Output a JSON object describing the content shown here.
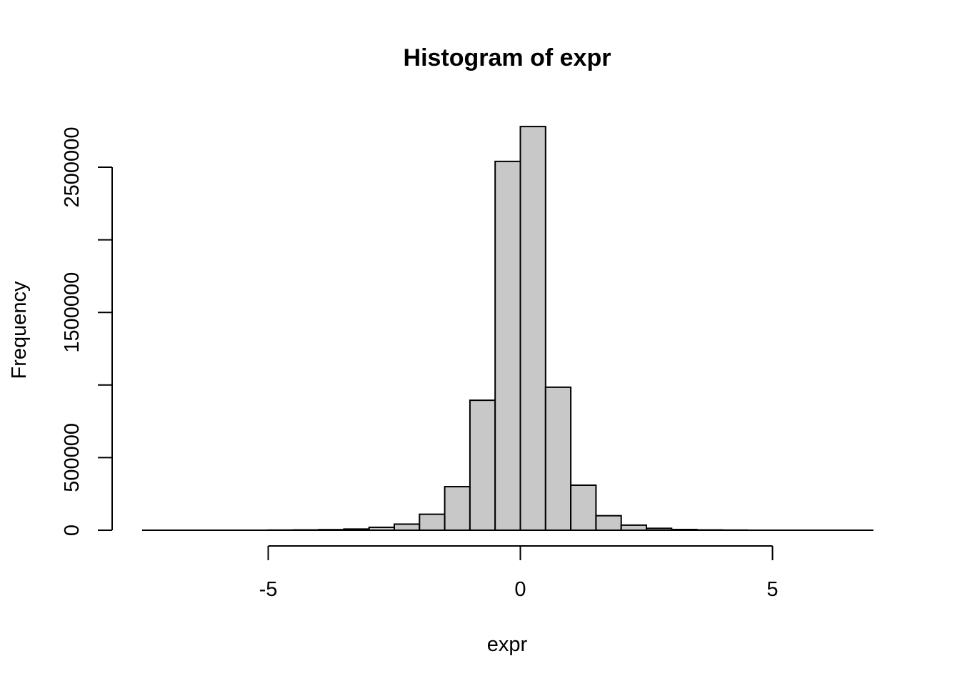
{
  "chart_data": {
    "type": "bar",
    "title": "Histogram of expr",
    "xlabel": "expr",
    "ylabel": "Frequency",
    "bar_fill": "#c8c8c8",
    "bin_width": 0.5,
    "bins": [
      {
        "x0": -7.5,
        "x1": -7.0,
        "count": 0
      },
      {
        "x0": -7.0,
        "x1": -6.5,
        "count": 0
      },
      {
        "x0": -6.5,
        "x1": -6.0,
        "count": 0
      },
      {
        "x0": -6.0,
        "x1": -5.5,
        "count": 0
      },
      {
        "x0": -5.5,
        "x1": -5.0,
        "count": 0
      },
      {
        "x0": -5.0,
        "x1": -4.5,
        "count": 1000
      },
      {
        "x0": -4.5,
        "x1": -4.0,
        "count": 2000
      },
      {
        "x0": -4.0,
        "x1": -3.5,
        "count": 4000
      },
      {
        "x0": -3.5,
        "x1": -3.0,
        "count": 8000
      },
      {
        "x0": -3.0,
        "x1": -2.5,
        "count": 20000
      },
      {
        "x0": -2.5,
        "x1": -2.0,
        "count": 42000
      },
      {
        "x0": -2.0,
        "x1": -1.5,
        "count": 110000
      },
      {
        "x0": -1.5,
        "x1": -1.0,
        "count": 300000
      },
      {
        "x0": -1.0,
        "x1": -0.5,
        "count": 895000
      },
      {
        "x0": -0.5,
        "x1": 0.0,
        "count": 2540000
      },
      {
        "x0": 0.0,
        "x1": 0.5,
        "count": 2780000
      },
      {
        "x0": 0.5,
        "x1": 1.0,
        "count": 985000
      },
      {
        "x0": 1.0,
        "x1": 1.5,
        "count": 310000
      },
      {
        "x0": 1.5,
        "x1": 2.0,
        "count": 100000
      },
      {
        "x0": 2.0,
        "x1": 2.5,
        "count": 35000
      },
      {
        "x0": 2.5,
        "x1": 3.0,
        "count": 13000
      },
      {
        "x0": 3.0,
        "x1": 3.5,
        "count": 5000
      },
      {
        "x0": 3.5,
        "x1": 4.0,
        "count": 2000
      },
      {
        "x0": 4.0,
        "x1": 4.5,
        "count": 1000
      },
      {
        "x0": 4.5,
        "x1": 5.0,
        "count": 0
      },
      {
        "x0": 5.0,
        "x1": 5.5,
        "count": 0
      },
      {
        "x0": 5.5,
        "x1": 6.0,
        "count": 0
      },
      {
        "x0": 6.0,
        "x1": 6.5,
        "count": 0
      },
      {
        "x0": 6.5,
        "x1": 7.0,
        "count": 0
      }
    ],
    "xlim": [
      -7.5,
      7.0
    ],
    "ylim": [
      0,
      2780000
    ],
    "x_axis": {
      "range": [
        -5,
        5
      ],
      "ticks": [
        {
          "value": -5,
          "label": "-5"
        },
        {
          "value": 0,
          "label": "0"
        },
        {
          "value": 5,
          "label": "5"
        }
      ]
    },
    "y_axis": {
      "range": [
        0,
        2500000
      ],
      "ticks": [
        {
          "value": 0,
          "label": "0"
        },
        {
          "value": 500000,
          "label": "500000"
        },
        {
          "value": 1000000,
          "label": ""
        },
        {
          "value": 1500000,
          "label": "1500000"
        },
        {
          "value": 2000000,
          "label": ""
        },
        {
          "value": 2500000,
          "label": "2500000"
        }
      ]
    },
    "grid": false,
    "legend": "none"
  }
}
